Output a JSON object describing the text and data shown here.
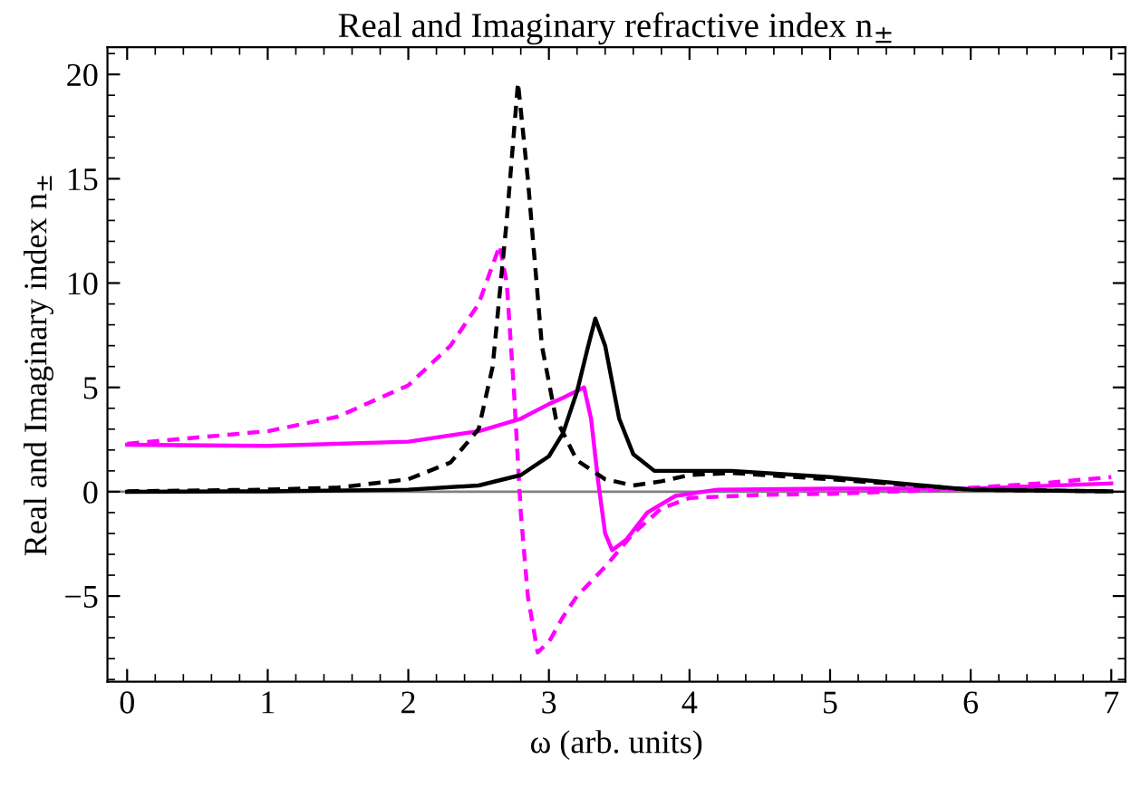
{
  "chart_data": {
    "type": "line",
    "title": "Real and Imaginary refractive index n$_{±}$",
    "xlabel": "ω (arb. units)",
    "ylabel": "Real and Imaginary index n$_{±}$",
    "xlim": [
      -0.14,
      7.1
    ],
    "ylim": [
      -9.1,
      21.3
    ],
    "xticks": [
      0,
      1,
      2,
      3,
      4,
      5,
      6,
      7
    ],
    "yticks": [
      {
        "value": -5,
        "label": "−5"
      },
      0,
      5,
      10,
      15,
      20
    ],
    "grid": false,
    "legend": false,
    "ref_lines": [
      {
        "axis": "y",
        "value": 0,
        "label": null,
        "color": "#808080"
      }
    ],
    "series": [
      {
        "color": "#ff00ff",
        "line_style": "solid",
        "x": [
          0,
          1,
          2,
          2.5,
          2.8,
          3.0,
          3.1,
          3.25,
          3.3,
          3.35,
          3.4,
          3.45,
          3.55,
          3.7,
          3.9,
          4.2,
          5,
          6,
          7
        ],
        "values": [
          2.25,
          2.2,
          2.4,
          2.9,
          3.5,
          4.2,
          4.5,
          5.0,
          3.5,
          0.5,
          -2.0,
          -2.8,
          -2.3,
          -1.0,
          -0.2,
          0.1,
          0.15,
          0.15,
          0.4
        ]
      },
      {
        "color": "#ff00ff",
        "line_style": "dashed",
        "x": [
          0,
          1,
          1.5,
          2,
          2.3,
          2.5,
          2.65,
          2.7,
          2.75,
          2.8,
          2.85,
          2.92,
          3.0,
          3.1,
          3.2,
          3.4,
          3.6,
          3.8,
          4.0,
          4.5,
          5,
          5.8,
          6.5,
          7
        ],
        "values": [
          2.3,
          2.9,
          3.6,
          5.1,
          7,
          9,
          11.8,
          10,
          5,
          -1,
          -5,
          -7.7,
          -7.2,
          -6,
          -5.0,
          -3.6,
          -2,
          -0.8,
          -0.3,
          -0.15,
          -0.1,
          0.1,
          0.4,
          0.7
        ]
      },
      {
        "color": "#000000",
        "line_style": "dashed",
        "x": [
          0,
          1,
          1.5,
          2,
          2.3,
          2.5,
          2.6,
          2.7,
          2.78,
          2.85,
          2.95,
          3.05,
          3.2,
          3.4,
          3.6,
          3.8,
          4.0,
          4.3,
          5,
          6,
          7
        ],
        "values": [
          0.02,
          0.1,
          0.2,
          0.6,
          1.4,
          3,
          6,
          13,
          19.6,
          15,
          7,
          3.5,
          1.5,
          0.6,
          0.3,
          0.5,
          0.8,
          0.9,
          0.6,
          0.1,
          0.02
        ]
      },
      {
        "color": "#000000",
        "line_style": "solid",
        "x": [
          0,
          1,
          2,
          2.5,
          2.8,
          3.0,
          3.1,
          3.2,
          3.28,
          3.33,
          3.4,
          3.5,
          3.6,
          3.75,
          4,
          4.3,
          5,
          5.5,
          6,
          7
        ],
        "values": [
          0.0,
          0.02,
          0.1,
          0.3,
          0.8,
          1.7,
          2.8,
          4.8,
          7,
          8.3,
          7,
          3.5,
          1.8,
          1.0,
          1.0,
          1.0,
          0.7,
          0.4,
          0.1,
          0.02
        ]
      }
    ]
  }
}
